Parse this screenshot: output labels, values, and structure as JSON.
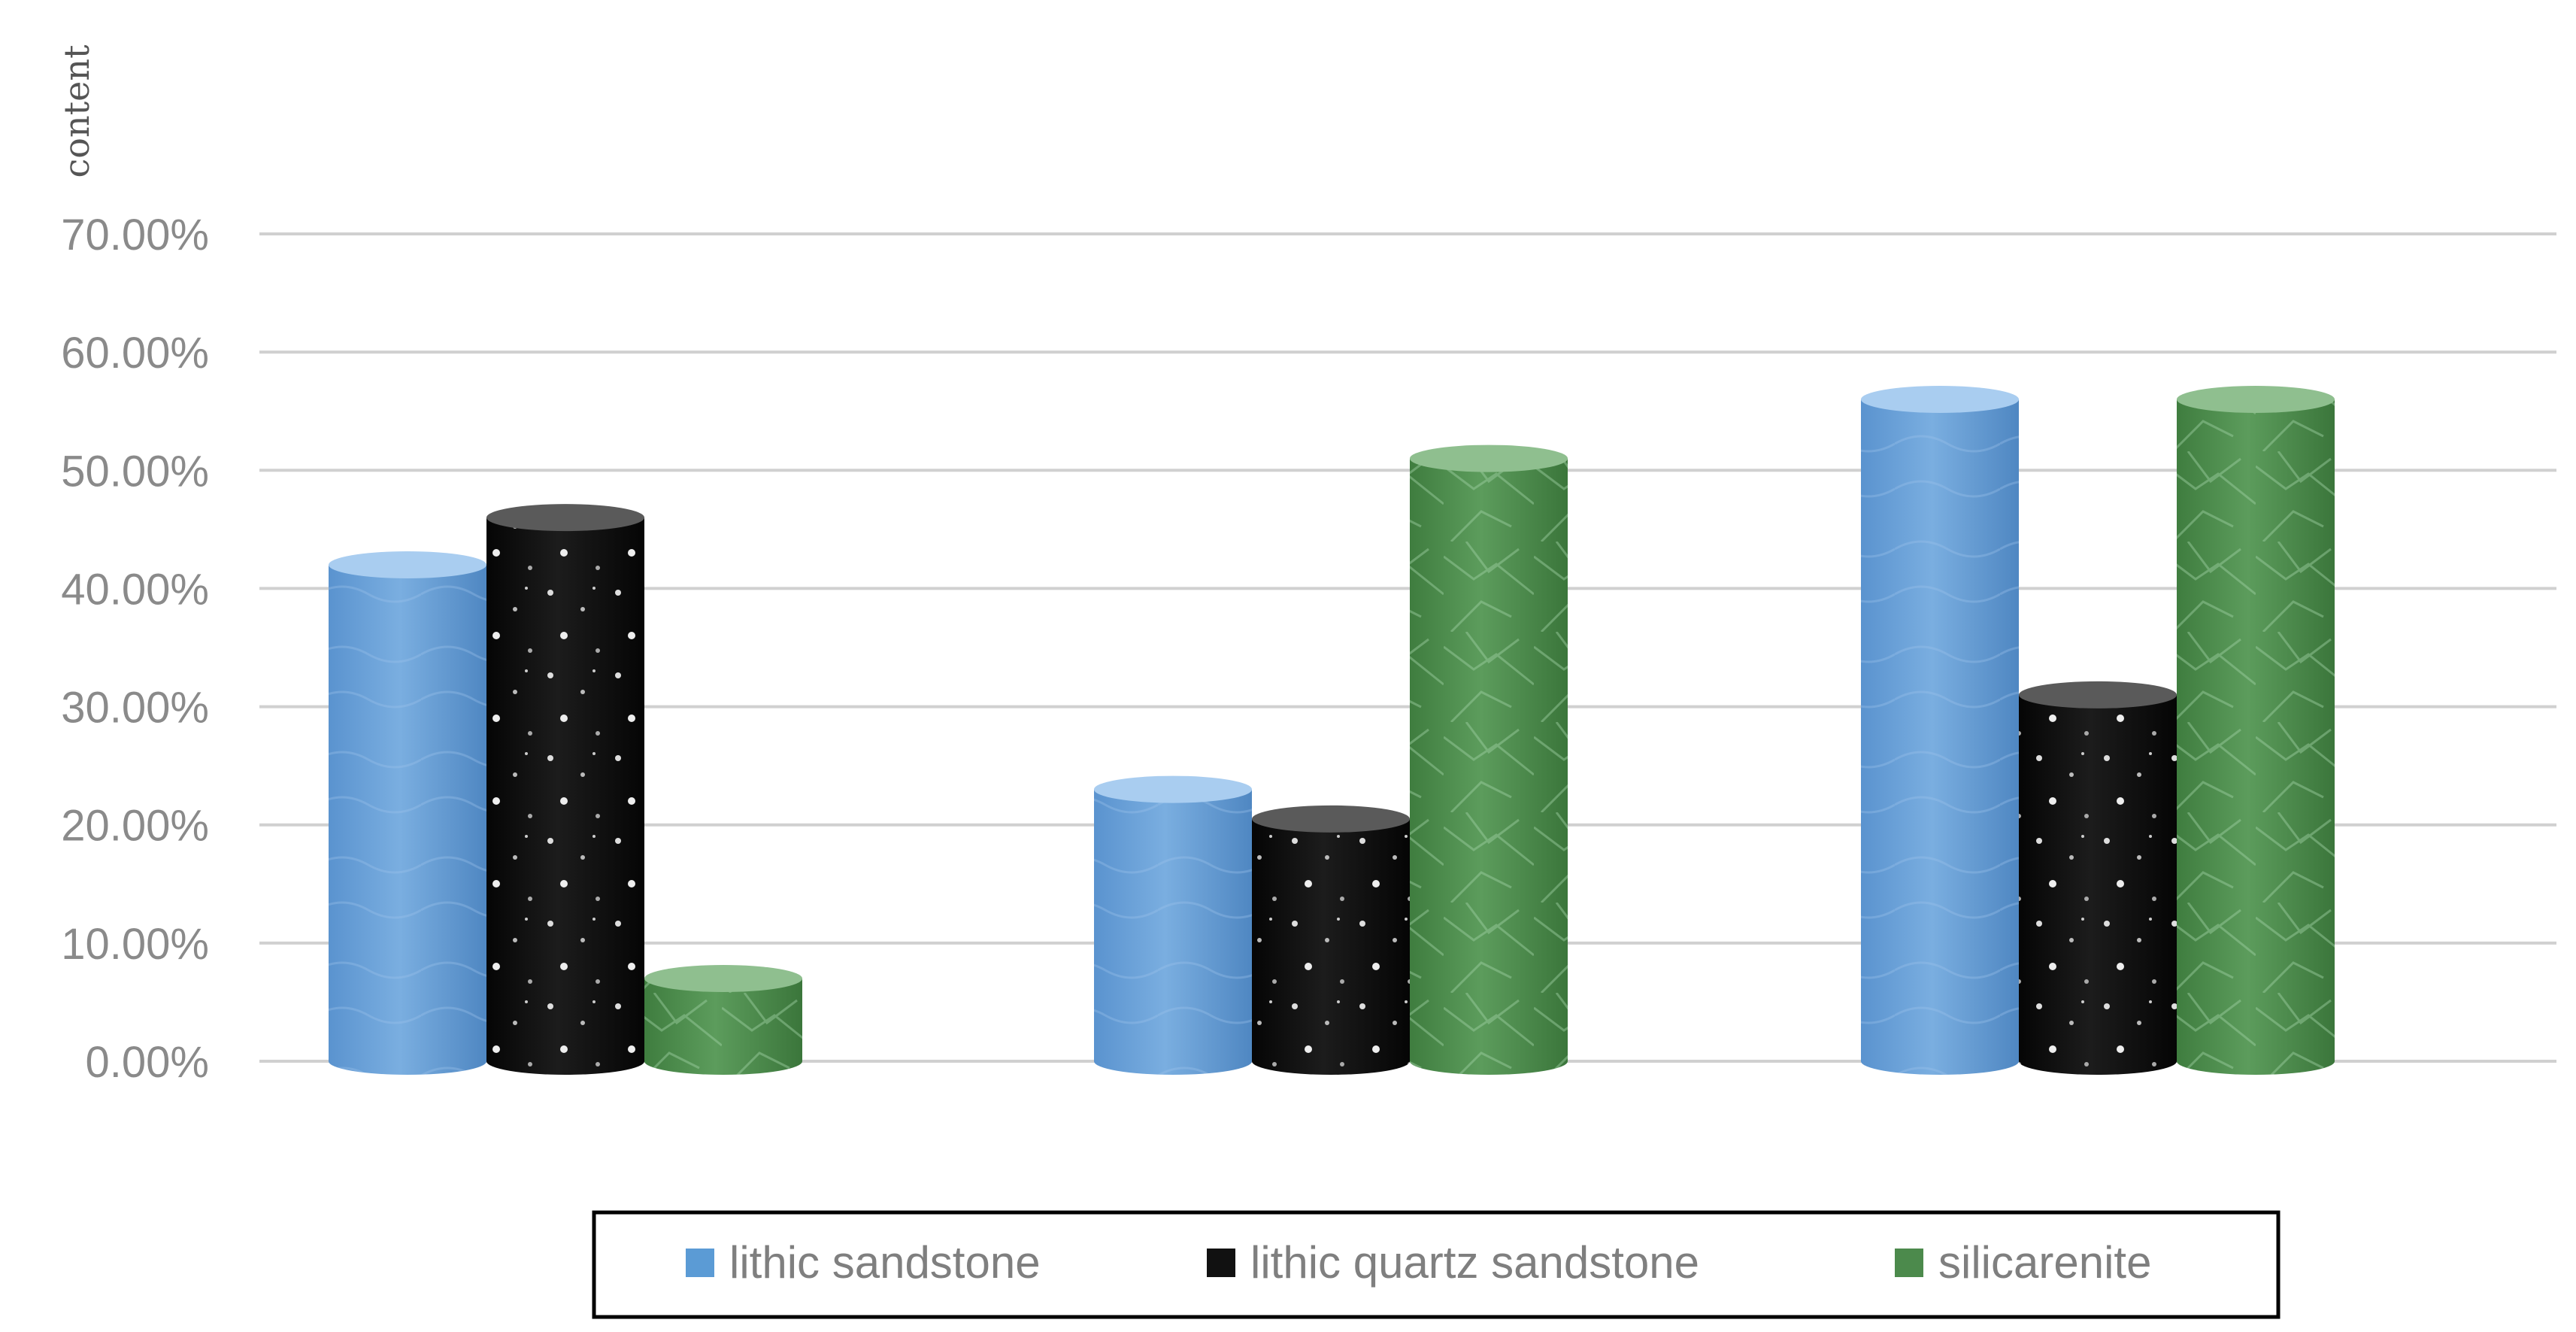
{
  "chart_data": {
    "type": "bar",
    "style": "cylinder",
    "categories": [
      "",
      "",
      ""
    ],
    "ylabel": "content",
    "ylim": [
      0,
      0.7
    ],
    "yticks": [
      "0.00%",
      "10.00%",
      "20.00%",
      "30.00%",
      "40.00%",
      "50.00%",
      "60.00%",
      "70.00%"
    ],
    "grid": true,
    "legend_position": "bottom",
    "series": [
      {
        "name": "lithic sandstone",
        "color": "#5b9bd5",
        "values": [
          0.42,
          0.23,
          0.56
        ]
      },
      {
        "name": "lithic quartz sandstone",
        "color": "#111111",
        "values": [
          0.46,
          0.205,
          0.31
        ]
      },
      {
        "name": "silicarenite",
        "color": "#4c8a4c",
        "values": [
          0.07,
          0.51,
          0.56
        ]
      }
    ]
  }
}
